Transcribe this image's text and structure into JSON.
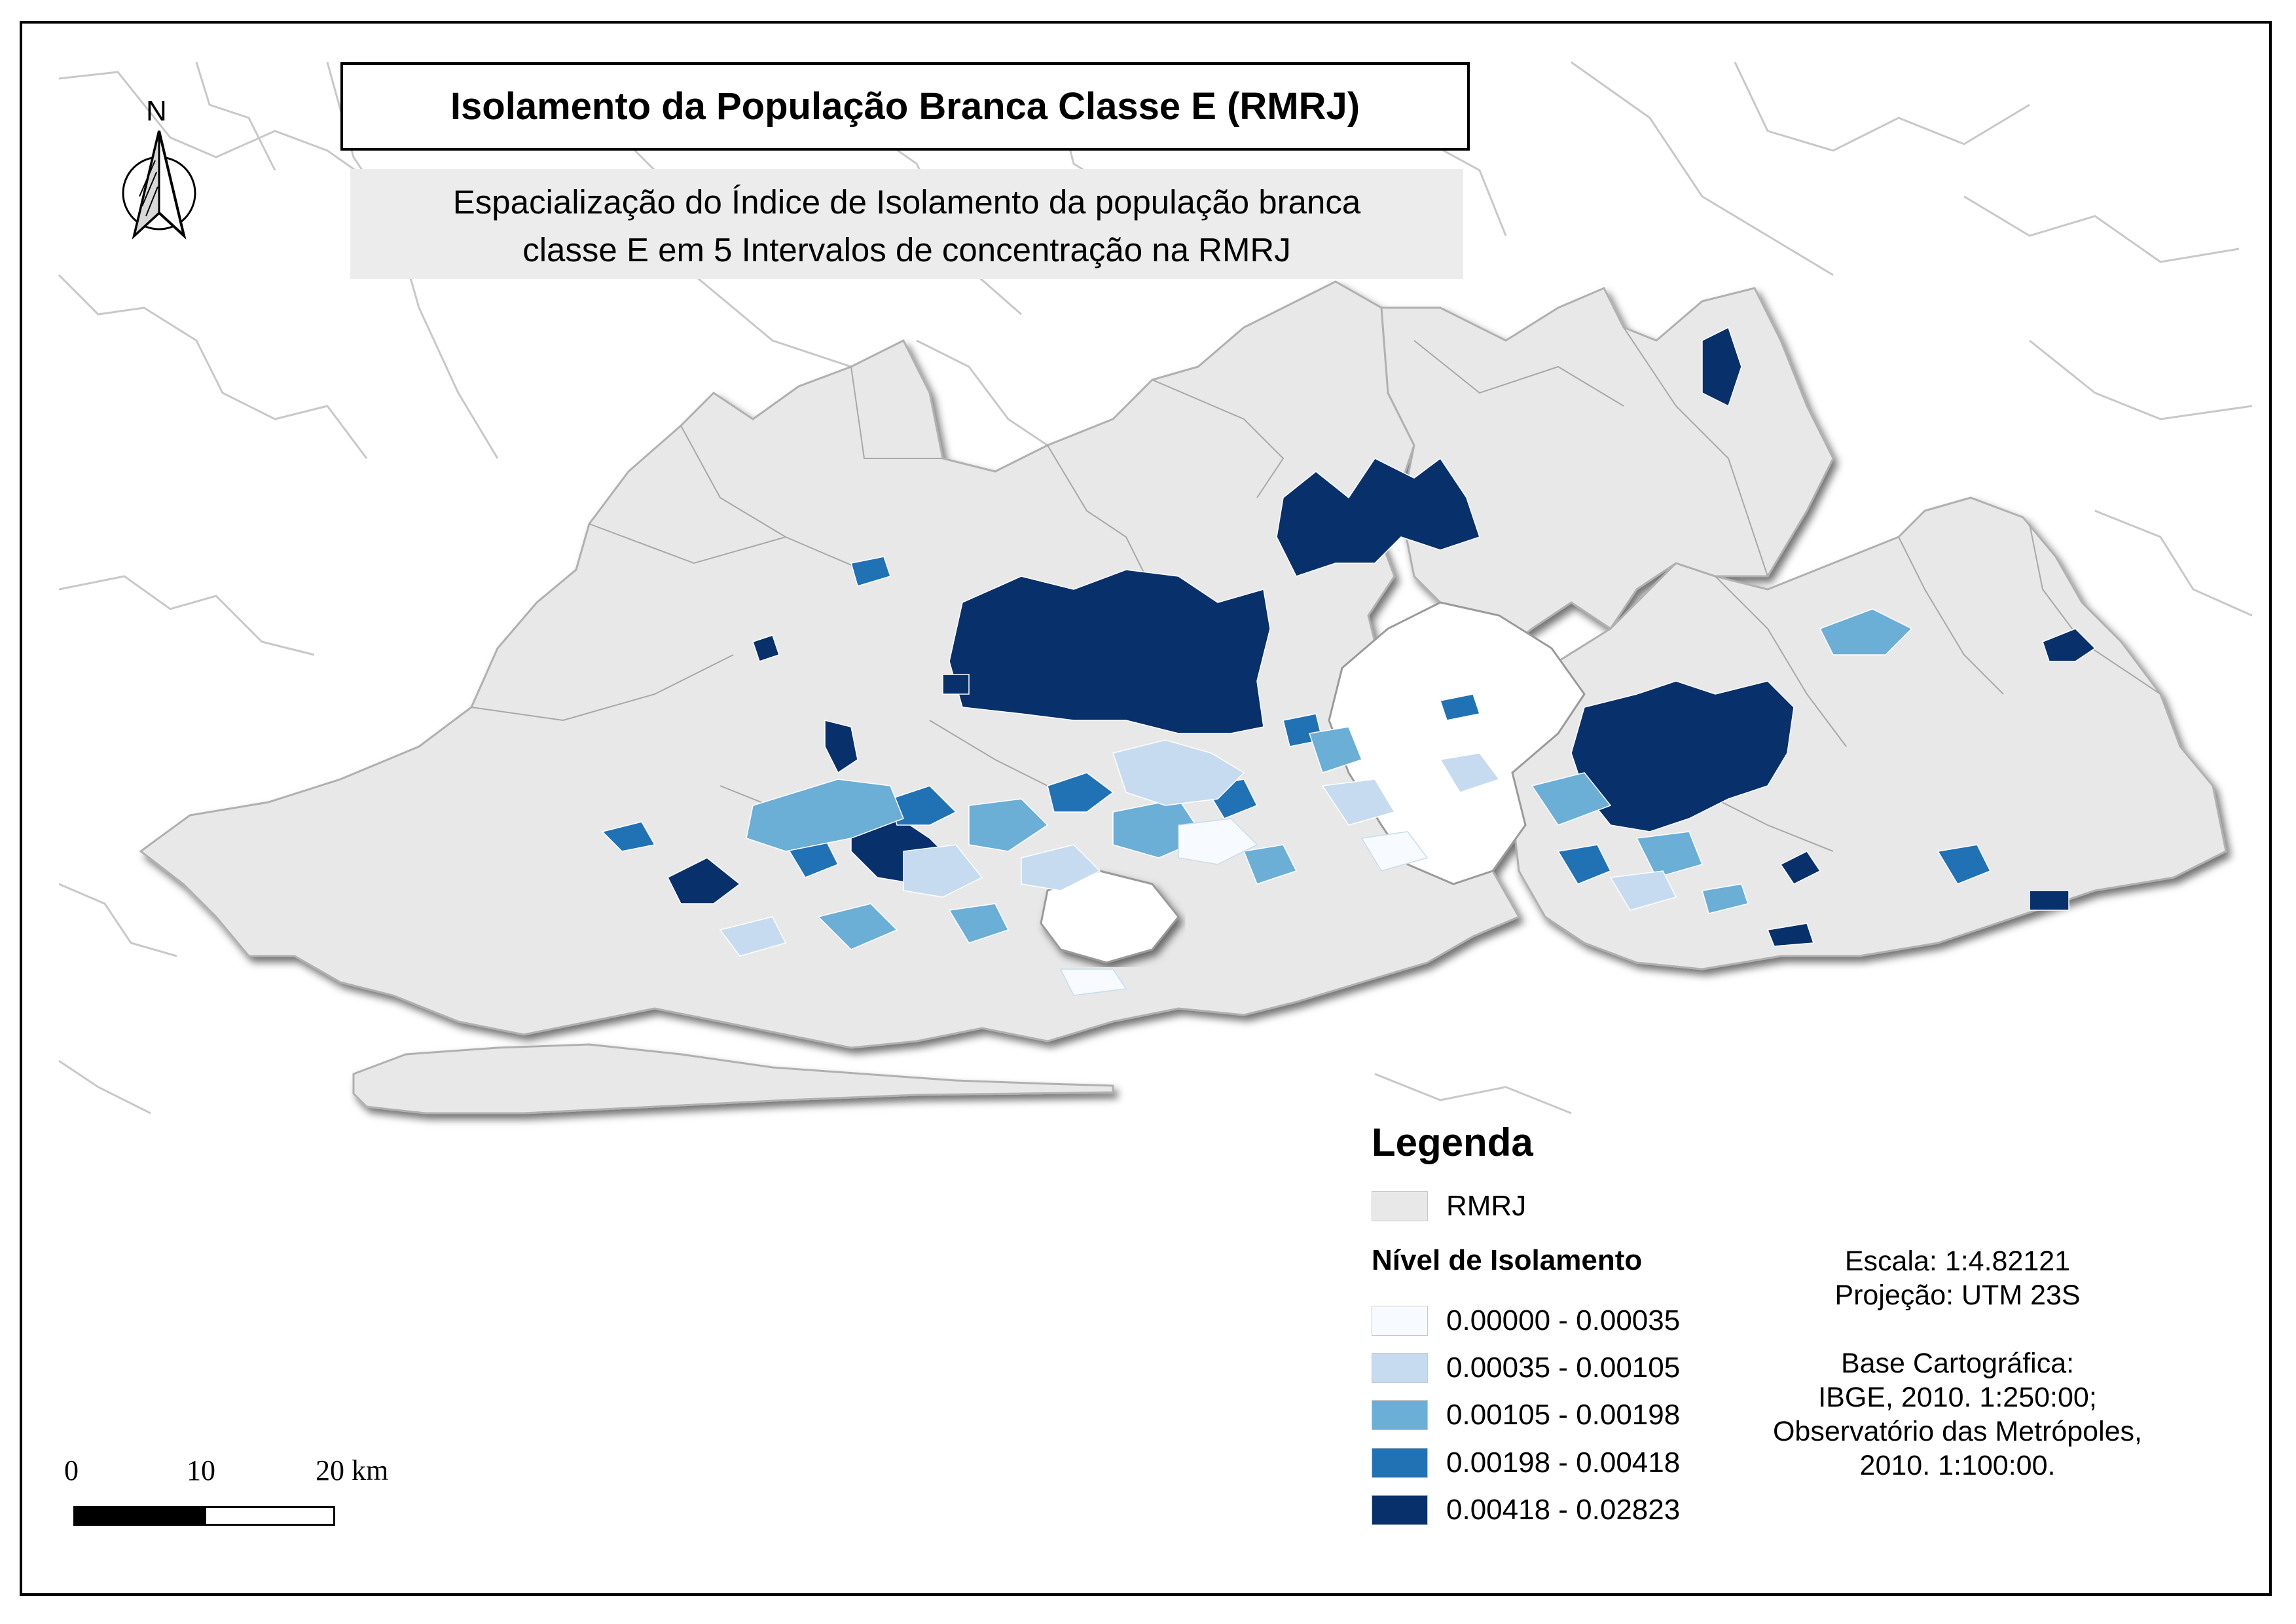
{
  "title": "Isolamento da População Branca Classe E (RMRJ)",
  "subtitle_lines": [
    "Espacialização do Índice de Isolamento da população branca",
    "classe E em 5 Intervalos de concentração na RMRJ"
  ],
  "north_arrow_label": "N",
  "legend": {
    "title": "Legenda",
    "region_label": "RMRJ",
    "region_color": "#e8e8e8",
    "classes_title": "Nível de Isolamento",
    "classes": [
      {
        "label": "0.00000 - 0.00035",
        "color": "#f7fbff"
      },
      {
        "label": "0.00035 - 0.00105",
        "color": "#c6dbef"
      },
      {
        "label": "0.00105 - 0.00198",
        "color": "#6baed6"
      },
      {
        "label": "0.00198 - 0.00418",
        "color": "#2171b5"
      },
      {
        "label": "0.00418 - 0.02823",
        "color": "#08306b"
      }
    ]
  },
  "notes": {
    "scale": "Escala: 1:4.82121",
    "projection": "Projeção: UTM 23S",
    "base_title": "Base Cartográfica:",
    "base_1": "IBGE, 2010. 1:250:00;",
    "base_2": "Observatório das Metrópoles,",
    "base_3": "2010. 1:100:00."
  },
  "scale_bar": {
    "tick_0": "0",
    "tick_10": "10",
    "tick_20": "20 km"
  }
}
